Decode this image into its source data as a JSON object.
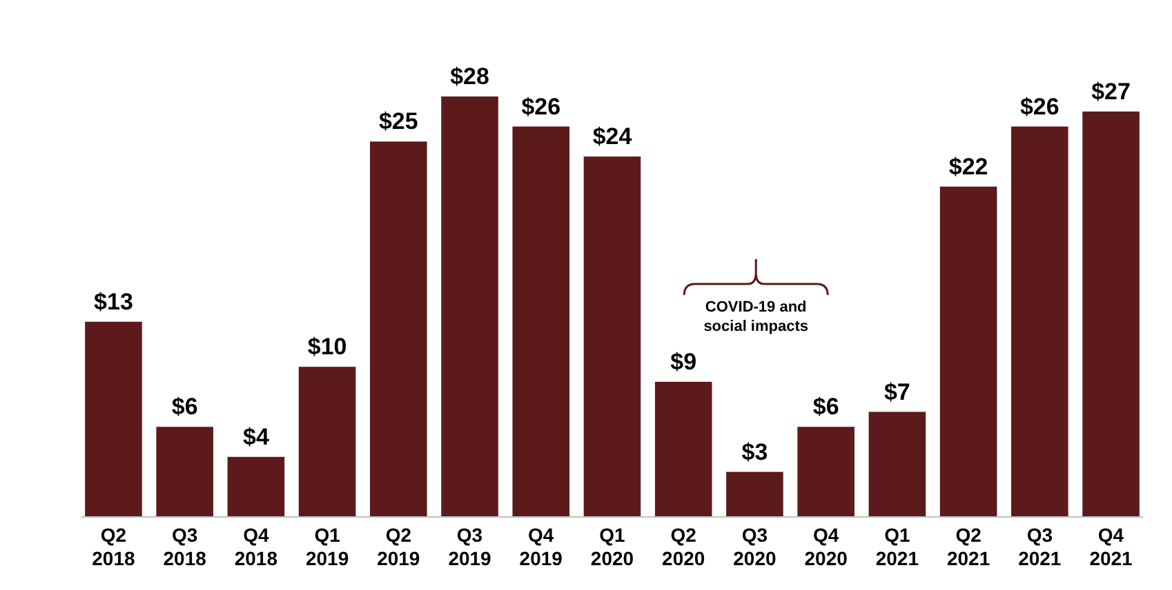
{
  "chart_data": {
    "type": "bar",
    "categories": [
      "Q2 2018",
      "Q3 2018",
      "Q4 2018",
      "Q1 2019",
      "Q2 2019",
      "Q3 2019",
      "Q4 2019",
      "Q1 2020",
      "Q2 2020",
      "Q3 2020",
      "Q4 2020",
      "Q1 2021",
      "Q2 2021",
      "Q3 2021",
      "Q4 2021"
    ],
    "values": [
      13,
      6,
      4,
      10,
      25,
      28,
      26,
      24,
      9,
      3,
      6,
      7,
      22,
      26,
      27
    ],
    "value_labels": [
      "$13",
      "$6",
      "$4",
      "$10",
      "$25",
      "$28",
      "$26",
      "$24",
      "$9",
      "$3",
      "$6",
      "$7",
      "$22",
      "$26",
      "$27"
    ],
    "color": "#5c1a1b",
    "annotations": [
      "COVID-19 and social impacts"
    ]
  }
}
